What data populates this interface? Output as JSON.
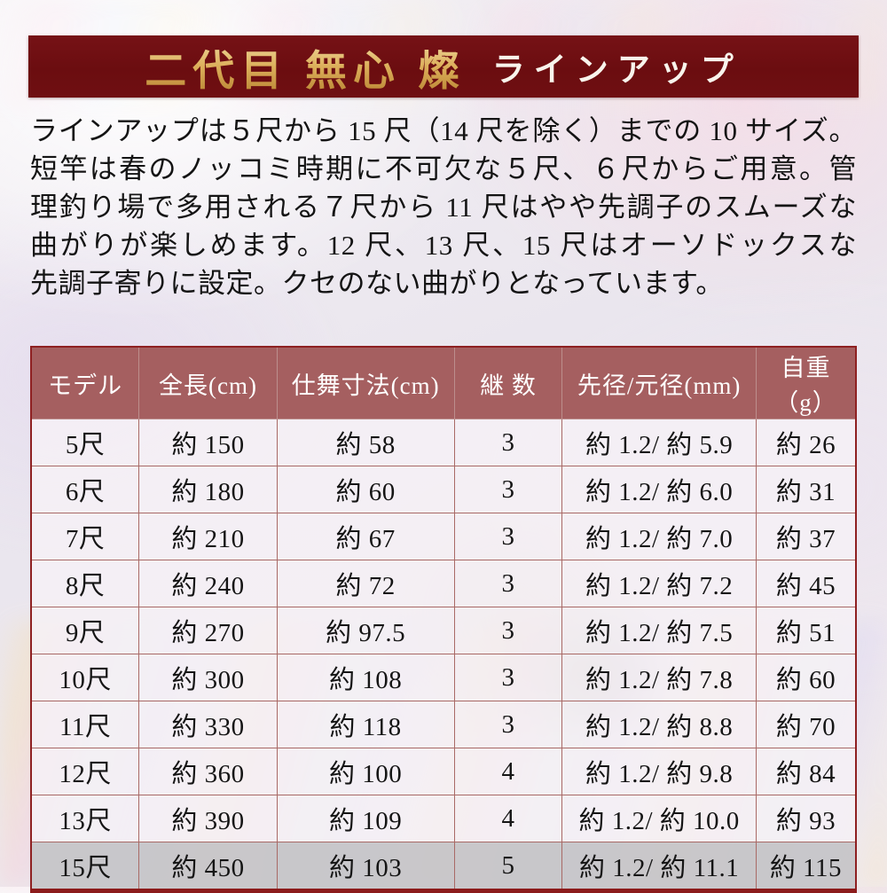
{
  "banner": {
    "title_gold": "二代目 無心 燦",
    "title_white": "ラインアップ"
  },
  "description": {
    "lines": [
      "ラインアップは５尺から 15 尺（14 尺を除く）までの 10 サイズ。",
      "短竿は春のノッコミ時期に不可欠な５尺、６尺からご用意。管",
      "理釣り場で多用される７尺から 11 尺はやや先調子のスムーズな",
      "曲がりが楽しめます。12 尺、13 尺、15 尺はオーソドックスな",
      "先調子寄りに設定。クセのない曲がりとなっています。"
    ]
  },
  "table": {
    "headers": [
      "モデル",
      "全長(cm)",
      "仕舞寸法(cm)",
      "継 数",
      "先径/元径(mm)",
      "自重（g）"
    ],
    "rows": [
      [
        "5尺",
        "約 150",
        "約 58",
        "3",
        "約 1.2/ 約 5.9",
        "約 26"
      ],
      [
        "6尺",
        "約 180",
        "約 60",
        "3",
        "約 1.2/ 約 6.0",
        "約 31"
      ],
      [
        "7尺",
        "約 210",
        "約 67",
        "3",
        "約 1.2/ 約 7.0",
        "約 37"
      ],
      [
        "8尺",
        "約 240",
        "約 72",
        "3",
        "約 1.2/ 約 7.2",
        "約 45"
      ],
      [
        "9尺",
        "約 270",
        "約 97.5",
        "3",
        "約 1.2/ 約 7.5",
        "約 51"
      ],
      [
        "10尺",
        "約 300",
        "約 108",
        "3",
        "約 1.2/ 約 7.8",
        "約 60"
      ],
      [
        "11尺",
        "約 330",
        "約 118",
        "3",
        "約 1.2/ 約 8.8",
        "約 70"
      ],
      [
        "12尺",
        "約 360",
        "約 100",
        "4",
        "約 1.2/ 約 9.8",
        "約 84"
      ],
      [
        "13尺",
        "約 390",
        "約 109",
        "4",
        "約 1.2/ 約 10.0",
        "約 93"
      ],
      [
        "15尺",
        "約 450",
        "約 103",
        "5",
        "約 1.2/ 約 11.1",
        "約 115"
      ]
    ],
    "last_row_highlighted": true,
    "column_widths_pct": [
      13.1,
      16.7,
      21.5,
      13.1,
      23.5,
      12.1
    ]
  },
  "colors": {
    "banner_bg": "#6e0f11",
    "banner_gold": "#d9ab55",
    "banner_text": "#f8f4ec",
    "header_bg": "#a55f60",
    "header_text": "#ffffff",
    "row_bg": "#f6f1f6",
    "last_row_bg": "#c6c5c8",
    "grid_line": "#a96a66",
    "outer_border": "#8c1b1b",
    "body_text": "#141414"
  }
}
